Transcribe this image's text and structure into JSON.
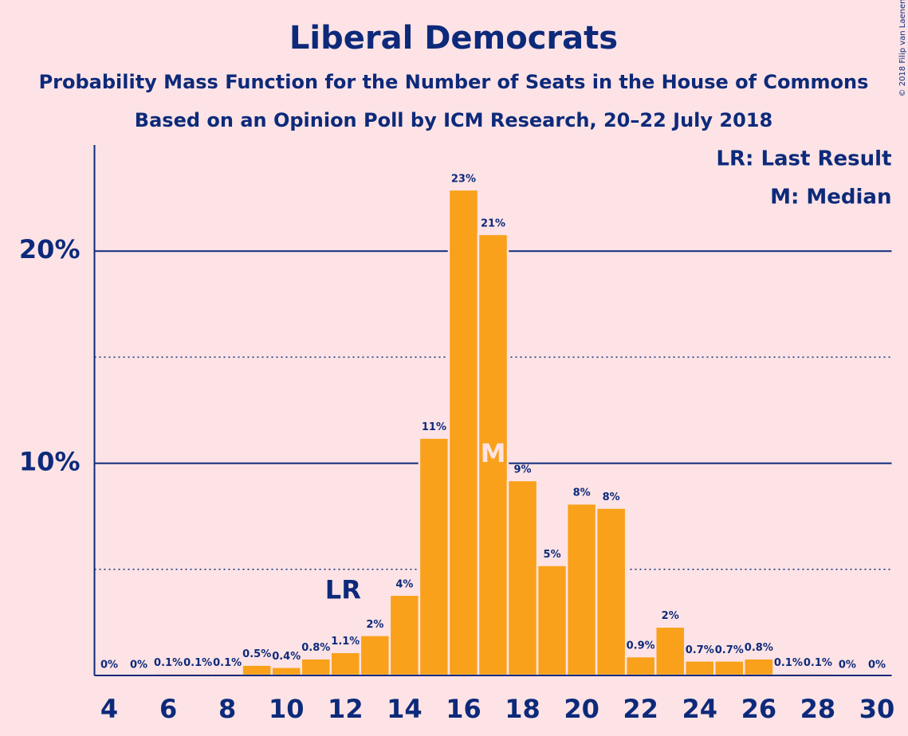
{
  "chart_data": {
    "type": "bar",
    "title": "Liberal Democrats",
    "subtitle": "Probability Mass Function for the Number of Seats in the House of Commons",
    "subtitle2": "Based on an Opinion Poll by ICM Research, 20–22 July 2018",
    "copyright": "© 2018 Filip van Laenen",
    "x": [
      4,
      5,
      6,
      7,
      8,
      9,
      10,
      11,
      12,
      13,
      14,
      15,
      16,
      17,
      18,
      19,
      20,
      21,
      22,
      23,
      24,
      25,
      26,
      27,
      28,
      29,
      30
    ],
    "values": [
      0,
      0,
      0.1,
      0.1,
      0.1,
      0.5,
      0.4,
      0.8,
      1.1,
      1.9,
      3.8,
      11.2,
      22.9,
      20.8,
      9.2,
      5.2,
      8.1,
      7.9,
      0.9,
      2.3,
      0.7,
      0.7,
      0.8,
      0.1,
      0.1,
      0,
      0
    ],
    "value_labels": [
      "0%",
      "0%",
      "0.1%",
      "0.1%",
      "0.1%",
      "0.5%",
      "0.4%",
      "0.8%",
      "1.1%",
      "2%",
      "4%",
      "11%",
      "23%",
      "21%",
      "9%",
      "5%",
      "8%",
      "8%",
      "0.9%",
      "2%",
      "0.7%",
      "0.7%",
      "0.8%",
      "0.1%",
      "0.1%",
      "0%",
      "0%"
    ],
    "color": "#f9a11b",
    "xlim": [
      3.5,
      30.5
    ],
    "xticks": [
      4,
      6,
      8,
      10,
      12,
      14,
      16,
      18,
      20,
      22,
      24,
      26,
      28,
      30
    ],
    "ylim": [
      0,
      25
    ],
    "yticks": [
      {
        "value": 10,
        "label": "10%"
      },
      {
        "value": 20,
        "label": "20%"
      }
    ],
    "minor_yticks": [
      5,
      15
    ],
    "grid": true,
    "annotations": [
      {
        "x": 12,
        "text": "LR"
      },
      {
        "x": 17,
        "text": "M"
      }
    ],
    "legend": [
      "LR: Last Result",
      "M: Median"
    ],
    "legend_position": "upper right"
  }
}
